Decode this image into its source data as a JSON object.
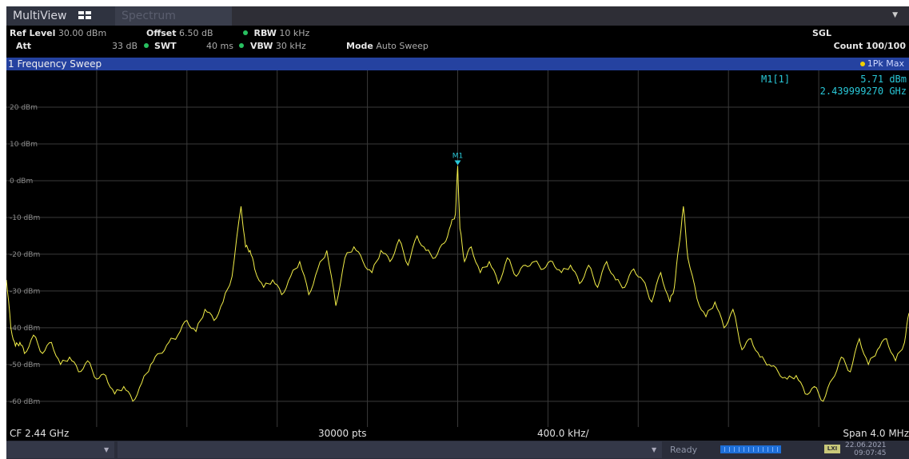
{
  "tabs": {
    "multiview": "MultiView",
    "spectrum": "Spectrum"
  },
  "settings": {
    "ref_level_label": "Ref Level",
    "ref_level_value": "30.00 dBm",
    "offset_label": "Offset",
    "offset_value": "6.50 dB",
    "rbw_label": "RBW",
    "rbw_value": "10 kHz",
    "att_label": "Att",
    "att_value": "33 dB",
    "swt_label": "SWT",
    "swt_value": "40 ms",
    "vbw_label": "VBW",
    "vbw_value": "30 kHz",
    "mode_label": "Mode",
    "mode_value": "Auto Sweep",
    "sgl": "SGL",
    "count": "Count 100/100"
  },
  "window": {
    "title": "1 Frequency Sweep",
    "trace_mode": "1Pk Max"
  },
  "marker": {
    "label": "M1[1]",
    "level": "5.71 dBm",
    "freq": "2.439999270 GHz",
    "tag": "M1"
  },
  "colors": {
    "trace": "#f2ee48",
    "marker": "#29c8d8",
    "grid": "#3a3a3a",
    "bar": "#2542a0"
  },
  "footer": {
    "cf": "CF 2.44 GHz",
    "points": "30000 pts",
    "div": "400.0 kHz/",
    "span": "Span 4.0 MHz"
  },
  "status": {
    "ready": "Ready",
    "date": "22.06.2021",
    "time": "09:07:45",
    "lxi": "LXI",
    "progress": 1.0
  },
  "chart_data": {
    "type": "line",
    "x_unit": "MHz",
    "xlim": [
      2438.0,
      2442.0
    ],
    "ylim": [
      -67.0,
      30.0
    ],
    "ytick_labels": [
      "20 dBm",
      "10 dBm",
      "0 dBm",
      "-10 dBm",
      "-20 dBm",
      "-30 dBm",
      "-40 dBm",
      "-50 dBm",
      "-60 dBm"
    ],
    "ytick_values": [
      20,
      10,
      0,
      -10,
      -20,
      -30,
      -40,
      -50,
      -60
    ],
    "grid": true,
    "series": [
      {
        "x": [
          2438.0,
          2438.02,
          2438.04,
          2438.06,
          2438.08,
          2438.12,
          2438.16,
          2438.2,
          2438.24,
          2438.28,
          2438.32,
          2438.36,
          2438.4,
          2438.44,
          2438.48,
          2438.52,
          2438.56,
          2438.6,
          2438.64,
          2438.68,
          2438.72,
          2438.76,
          2438.8,
          2438.84,
          2438.88,
          2438.92,
          2438.96,
          2439.0,
          2439.04,
          2439.06,
          2439.08,
          2439.1,
          2439.14,
          2439.18,
          2439.22,
          2439.26,
          2439.3,
          2439.34,
          2439.38,
          2439.42,
          2439.46,
          2439.5,
          2439.54,
          2439.58,
          2439.62,
          2439.66,
          2439.7,
          2439.74,
          2439.78,
          2439.82,
          2439.86,
          2439.9,
          2439.94,
          2439.97,
          2439.99,
          2440.0,
          2440.01,
          2440.03,
          2440.06,
          2440.1,
          2440.14,
          2440.18,
          2440.22,
          2440.26,
          2440.3,
          2440.34,
          2440.38,
          2440.42,
          2440.46,
          2440.5,
          2440.54,
          2440.58,
          2440.62,
          2440.66,
          2440.7,
          2440.74,
          2440.78,
          2440.82,
          2440.86,
          2440.9,
          2440.94,
          2440.96,
          2440.98,
          2441.0,
          2441.02,
          2441.06,
          2441.1,
          2441.14,
          2441.18,
          2441.22,
          2441.26,
          2441.3,
          2441.34,
          2441.38,
          2441.42,
          2441.46,
          2441.5,
          2441.54,
          2441.58,
          2441.62,
          2441.66,
          2441.7,
          2441.74,
          2441.78,
          2441.82,
          2441.86,
          2441.9,
          2441.94,
          2441.98,
          2442.0
        ],
        "y": [
          -27,
          -40,
          -45,
          -44,
          -47,
          -42,
          -47,
          -44,
          -50,
          -48,
          -52,
          -49,
          -54,
          -53,
          -58,
          -56,
          -60,
          -55,
          -50,
          -47,
          -44,
          -42,
          -38,
          -41,
          -35,
          -38,
          -33,
          -26,
          -7,
          -18,
          -19,
          -24,
          -29,
          -27,
          -31,
          -26,
          -22,
          -31,
          -24,
          -19,
          -34,
          -21,
          -18,
          -22,
          -25,
          -19,
          -22,
          -16,
          -23,
          -15,
          -19,
          -21,
          -17,
          -12,
          -9,
          4,
          -13,
          -22,
          -18,
          -25,
          -22,
          -28,
          -21,
          -26,
          -23,
          -22,
          -24,
          -22,
          -25,
          -23,
          -28,
          -23,
          -29,
          -22,
          -27,
          -29,
          -24,
          -27,
          -33,
          -25,
          -33,
          -29,
          -18,
          -7,
          -21,
          -32,
          -37,
          -33,
          -40,
          -35,
          -46,
          -43,
          -48,
          -50,
          -52,
          -54,
          -53,
          -58,
          -56,
          -60,
          -54,
          -48,
          -52,
          -43,
          -50,
          -46,
          -43,
          -49,
          -44,
          -36
        ]
      }
    ]
  }
}
